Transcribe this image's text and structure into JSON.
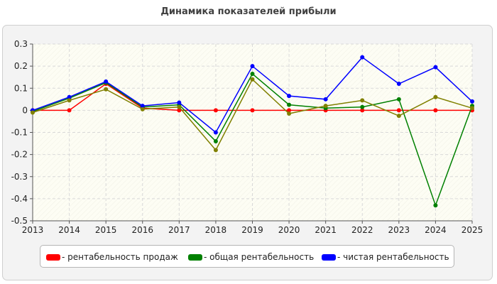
{
  "chart_data": {
    "type": "line",
    "title": "Динамика показателей прибыли",
    "xlabel": "",
    "ylabel": "",
    "x": [
      "2013",
      "2014",
      "2015",
      "2016",
      "2017",
      "2018",
      "2019",
      "2020",
      "2021",
      "2022",
      "2023",
      "2024",
      "2025"
    ],
    "ylim": [
      -0.5,
      0.3
    ],
    "yticks": [
      "0.3",
      "0.2",
      "0.1",
      "0",
      "-0.1",
      "-0.2",
      "-0.3",
      "-0.4",
      "-0.5"
    ],
    "grid": true,
    "legend_position": "bottom",
    "series": [
      {
        "name": "- рентабельность продаж",
        "color": "#ff0000",
        "values": [
          0,
          0,
          0.12,
          0.01,
          0,
          0,
          0,
          0,
          0,
          0,
          0,
          0,
          0
        ]
      },
      {
        "name": "- общая рентабельность",
        "color": "#008000",
        "values": [
          -0.005,
          0.055,
          0.125,
          0.015,
          0.025,
          -0.14,
          0.165,
          0.025,
          0.01,
          0.015,
          0.05,
          -0.43,
          0.02
        ]
      },
      {
        "name": "- чистая рентабельность",
        "color": "#0000ff",
        "values": [
          0,
          0.06,
          0.13,
          0.02,
          0.035,
          -0.1,
          0.2,
          0.065,
          0.05,
          0.24,
          0.12,
          0.195,
          0.04
        ]
      },
      {
        "name": "",
        "color": "#808000",
        "values": [
          -0.01,
          0.045,
          0.095,
          0.005,
          0.015,
          -0.18,
          0.14,
          -0.015,
          0.02,
          0.045,
          -0.025,
          0.06,
          0.01
        ]
      }
    ]
  }
}
